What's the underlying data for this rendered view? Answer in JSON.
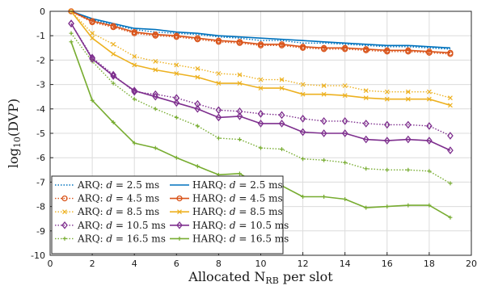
{
  "chart_data": {
    "type": "line",
    "title": "",
    "xlabel": "Allocated N",
    "xlabel_sub": "RB",
    "xlabel_suffix": " per slot",
    "ylabel": "log",
    "ylabel_sub": "10",
    "ylabel_suffix": "(DVP)",
    "xlim": [
      0,
      20
    ],
    "ylim": [
      -10,
      0
    ],
    "xticks": [
      0,
      2,
      4,
      6,
      8,
      10,
      12,
      14,
      16,
      18,
      20
    ],
    "yticks": [
      0,
      -1,
      -2,
      -3,
      -4,
      -5,
      -6,
      -7,
      -8,
      -9,
      -10
    ],
    "grid": true,
    "legend_position": "bottom-left",
    "x": [
      1,
      2,
      3,
      4,
      5,
      6,
      7,
      8,
      9,
      10,
      11,
      12,
      13,
      14,
      15,
      16,
      17,
      18,
      19
    ],
    "series": [
      {
        "name": "ARQ: d = 2.5 ms",
        "protocol": "ARQ",
        "d": "2.5",
        "color": "#0072BD",
        "style": "dotted",
        "marker": "none",
        "values": [
          0,
          -0.35,
          -0.55,
          -0.75,
          -0.85,
          -0.9,
          -0.95,
          -1.05,
          -1.1,
          -1.2,
          -1.2,
          -1.3,
          -1.3,
          -1.35,
          -1.4,
          -1.45,
          -1.45,
          -1.5,
          -1.55
        ]
      },
      {
        "name": "ARQ: d = 4.5 ms",
        "protocol": "ARQ",
        "d": "4.5",
        "color": "#D95319",
        "style": "dotted",
        "marker": "circle",
        "values": [
          0,
          -0.45,
          -0.65,
          -0.9,
          -1.0,
          -1.05,
          -1.15,
          -1.25,
          -1.3,
          -1.4,
          -1.4,
          -1.5,
          -1.55,
          -1.55,
          -1.6,
          -1.65,
          -1.65,
          -1.7,
          -1.75
        ]
      },
      {
        "name": "ARQ: d = 8.5 ms",
        "protocol": "ARQ",
        "d": "8.5",
        "color": "#EDB120",
        "style": "dotted",
        "marker": "x",
        "values": [
          0,
          -0.9,
          -1.35,
          -1.85,
          -2.05,
          -2.2,
          -2.35,
          -2.55,
          -2.6,
          -2.8,
          -2.8,
          -3.0,
          -3.05,
          -3.05,
          -3.25,
          -3.3,
          -3.3,
          -3.3,
          -3.55
        ]
      },
      {
        "name": "ARQ: d = 10.5 ms",
        "protocol": "ARQ",
        "d": "10.5",
        "color": "#7E2F8E",
        "style": "dotted",
        "marker": "diamond",
        "values": [
          -0.5,
          -1.9,
          -2.6,
          -3.3,
          -3.4,
          -3.55,
          -3.8,
          -4.05,
          -4.1,
          -4.2,
          -4.25,
          -4.4,
          -4.5,
          -4.5,
          -4.6,
          -4.65,
          -4.65,
          -4.7,
          -5.1
        ]
      },
      {
        "name": "ARQ: d = 16.5 ms",
        "protocol": "ARQ",
        "d": "16.5",
        "color": "#77AC30",
        "style": "dotted",
        "marker": "plus",
        "values": [
          -0.9,
          -2.05,
          -2.95,
          -3.6,
          -4.0,
          -4.35,
          -4.7,
          -5.2,
          -5.25,
          -5.6,
          -5.65,
          -6.05,
          -6.1,
          -6.2,
          -6.45,
          -6.5,
          -6.5,
          -6.55,
          -7.05
        ]
      },
      {
        "name": "HARQ: d = 2.5 ms",
        "protocol": "HARQ",
        "d": "2.5",
        "color": "#0072BD",
        "style": "solid",
        "marker": "none",
        "values": [
          0,
          -0.3,
          -0.5,
          -0.7,
          -0.75,
          -0.85,
          -0.9,
          -1.0,
          -1.05,
          -1.1,
          -1.15,
          -1.2,
          -1.25,
          -1.3,
          -1.35,
          -1.4,
          -1.4,
          -1.45,
          -1.5
        ]
      },
      {
        "name": "HARQ: d = 4.5 ms",
        "protocol": "HARQ",
        "d": "4.5",
        "color": "#D95319",
        "style": "solid",
        "marker": "circle",
        "values": [
          0,
          -0.4,
          -0.6,
          -0.85,
          -0.95,
          -1.0,
          -1.1,
          -1.2,
          -1.25,
          -1.35,
          -1.35,
          -1.45,
          -1.5,
          -1.5,
          -1.55,
          -1.6,
          -1.6,
          -1.65,
          -1.7
        ]
      },
      {
        "name": "HARQ: d = 8.5 ms",
        "protocol": "HARQ",
        "d": "8.5",
        "color": "#EDB120",
        "style": "solid",
        "marker": "x",
        "values": [
          0,
          -1.1,
          -1.75,
          -2.2,
          -2.4,
          -2.55,
          -2.7,
          -2.95,
          -2.95,
          -3.15,
          -3.15,
          -3.4,
          -3.4,
          -3.45,
          -3.55,
          -3.6,
          -3.6,
          -3.6,
          -3.85
        ]
      },
      {
        "name": "HARQ: d = 10.5 ms",
        "protocol": "HARQ",
        "d": "10.5",
        "color": "#7E2F8E",
        "style": "solid",
        "marker": "diamond",
        "values": [
          -0.5,
          -1.95,
          -2.65,
          -3.25,
          -3.5,
          -3.75,
          -4.0,
          -4.35,
          -4.3,
          -4.6,
          -4.6,
          -4.95,
          -5.0,
          -5.0,
          -5.25,
          -5.3,
          -5.25,
          -5.3,
          -5.7
        ]
      },
      {
        "name": "HARQ: d = 16.5 ms",
        "protocol": "HARQ",
        "d": "16.5",
        "color": "#77AC30",
        "style": "solid",
        "marker": "plus",
        "values": [
          -1.25,
          -3.65,
          -4.55,
          -5.4,
          -5.6,
          -6.0,
          -6.35,
          -6.7,
          -6.65,
          -7.15,
          -7.15,
          -7.6,
          -7.6,
          -7.7,
          -8.05,
          -8.0,
          -7.95,
          -7.95,
          -8.45
        ]
      }
    ]
  }
}
